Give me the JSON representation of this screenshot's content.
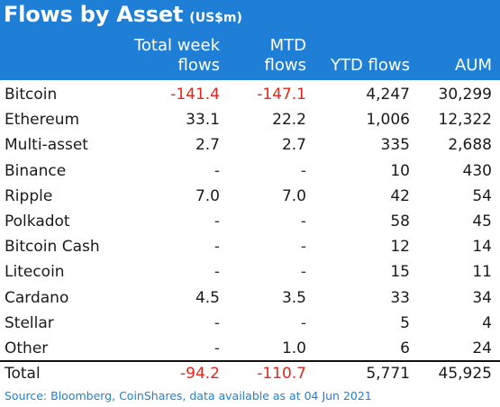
{
  "title": "Flows by Asset",
  "title_unit": "(US$m)",
  "headers": {
    "col1_line1": "Total week",
    "col1_line2": "flows",
    "col2_line1": "MTD",
    "col2_line2": "flows",
    "col3": "YTD flows",
    "col4": "AUM"
  },
  "rows": [
    {
      "asset": "Bitcoin",
      "week": "-141.4",
      "mtd": "-147.1",
      "ytd": "4,247",
      "aum": "30,299"
    },
    {
      "asset": "Ethereum",
      "week": "33.1",
      "mtd": "22.2",
      "ytd": "1,006",
      "aum": "12,322"
    },
    {
      "asset": "Multi-asset",
      "week": "2.7",
      "mtd": "2.7",
      "ytd": "335",
      "aum": "2,688"
    },
    {
      "asset": "Binance",
      "week": "-",
      "mtd": "-",
      "ytd": "10",
      "aum": "430"
    },
    {
      "asset": "Ripple",
      "week": "7.0",
      "mtd": "7.0",
      "ytd": "42",
      "aum": "54"
    },
    {
      "asset": "Polkadot",
      "week": "-",
      "mtd": "-",
      "ytd": "58",
      "aum": "45"
    },
    {
      "asset": "Bitcoin Cash",
      "week": "-",
      "mtd": "-",
      "ytd": "12",
      "aum": "14"
    },
    {
      "asset": "Litecoin",
      "week": "-",
      "mtd": "-",
      "ytd": "15",
      "aum": "11"
    },
    {
      "asset": "Cardano",
      "week": "4.5",
      "mtd": "3.5",
      "ytd": "33",
      "aum": "34"
    },
    {
      "asset": "Stellar",
      "week": "-",
      "mtd": "-",
      "ytd": "5",
      "aum": "4"
    },
    {
      "asset": "Other",
      "week": "-",
      "mtd": "1.0",
      "ytd": "6",
      "aum": "24"
    }
  ],
  "total": {
    "asset": "Total",
    "week": "-94.2",
    "mtd": "-110.7",
    "ytd": "5,771",
    "aum": "45,925"
  },
  "source": "Source: Bloomberg, CoinShares, data available as at 04 Jun 2021",
  "colors": {
    "header_bg": "#1f7fd6",
    "negative": "#e1261c",
    "source_text": "#1f7fd6"
  }
}
